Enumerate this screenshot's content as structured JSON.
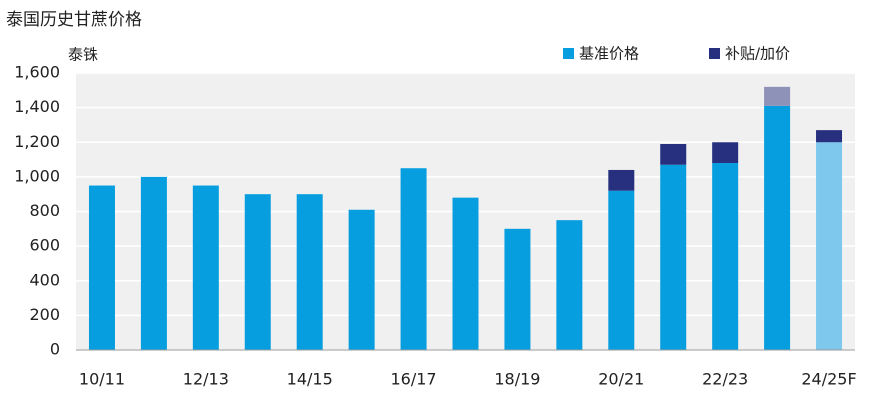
{
  "chart_data": {
    "type": "stacked-bar",
    "title": "泰国历史甘蔗价格",
    "y_label": "泰铢",
    "categories": [
      "10/11",
      null,
      "12/13",
      null,
      "14/15",
      null,
      "16/17",
      null,
      "18/19",
      null,
      "20/21",
      null,
      "22/23",
      null,
      "24/25F"
    ],
    "series": [
      {
        "name": "基准价格",
        "color": "#079ee0",
        "colors": [
          "#079ee0",
          "#079ee0",
          "#079ee0",
          "#079ee0",
          "#079ee0",
          "#079ee0",
          "#079ee0",
          "#079ee0",
          "#079ee0",
          "#079ee0",
          "#079ee0",
          "#079ee0",
          "#079ee0",
          "#079ee0",
          "#7ec8ee"
        ],
        "values": [
          950,
          1000,
          950,
          900,
          900,
          810,
          1050,
          880,
          700,
          750,
          920,
          1070,
          1080,
          1410,
          1200
        ]
      },
      {
        "name": "补贴/加价",
        "color": "#27307f",
        "colors": [
          "#27307f",
          "#27307f",
          "#27307f",
          "#27307f",
          "#27307f",
          "#27307f",
          "#27307f",
          "#27307f",
          "#27307f",
          "#27307f",
          "#27307f",
          "#27307f",
          "#27307f",
          "#8f92b8",
          "#27307f"
        ],
        "values": [
          null,
          null,
          null,
          null,
          null,
          null,
          null,
          null,
          null,
          null,
          120,
          120,
          120,
          110,
          70
        ]
      }
    ],
    "ylim": [
      0,
      1600
    ],
    "yticks": [
      0,
      200,
      400,
      600,
      800,
      {
        "value": 1000,
        "label": "1,000"
      },
      {
        "value": 1200,
        "label": "1,200"
      },
      {
        "value": 1400,
        "label": "1,400"
      },
      {
        "value": 1600,
        "label": "1,600"
      }
    ],
    "grid": true
  }
}
